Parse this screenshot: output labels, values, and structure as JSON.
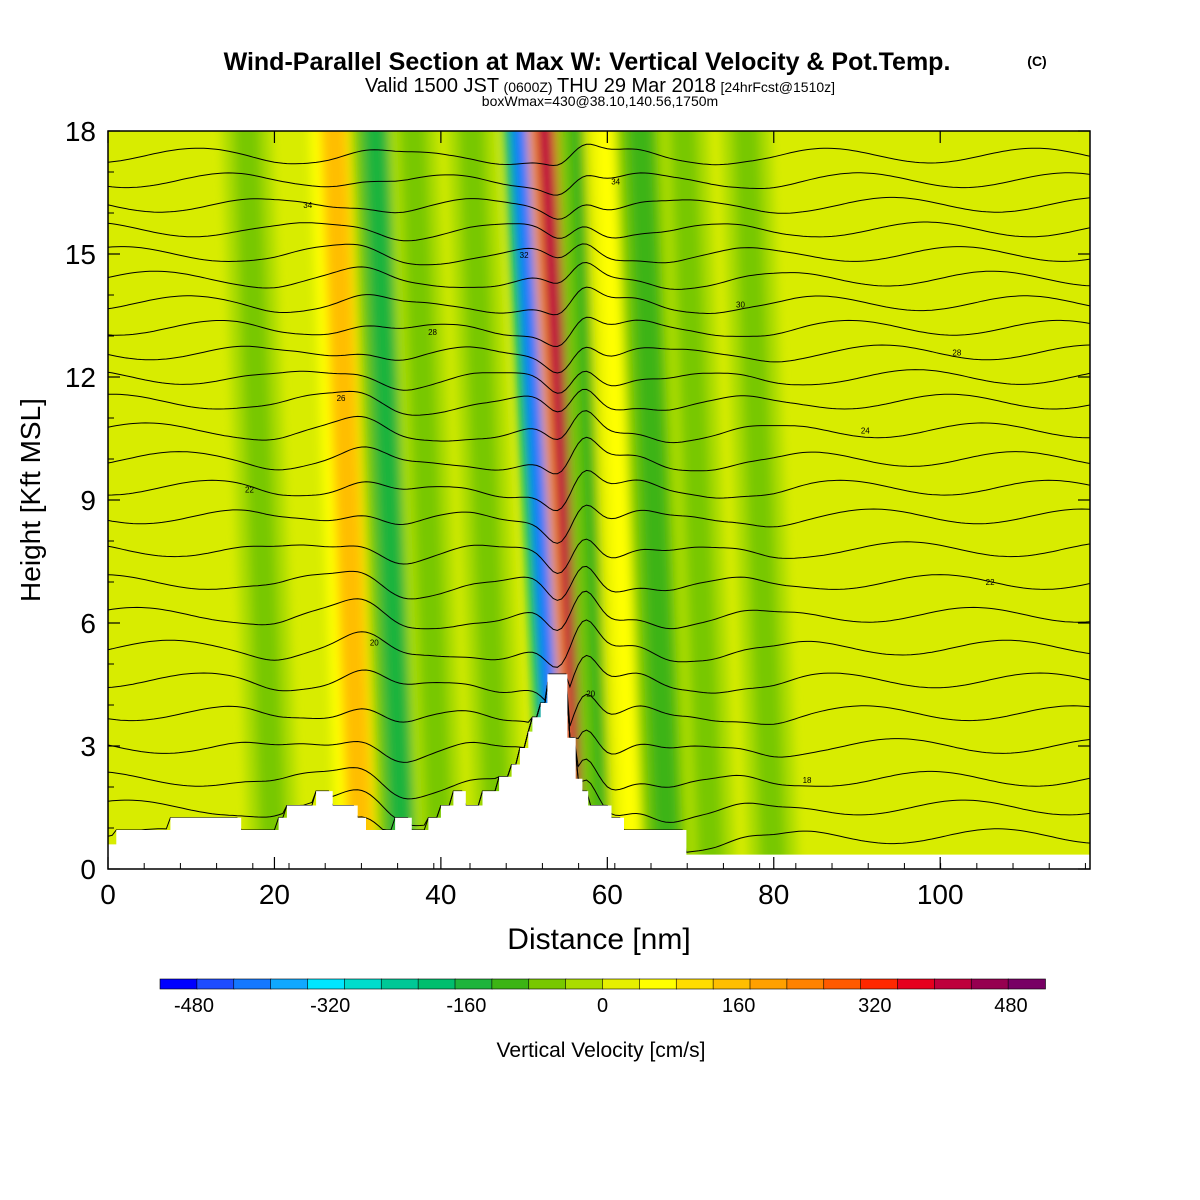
{
  "header": {
    "title": "Wind-Parallel Section at Max W: Vertical Velocity & Pot.Temp.",
    "title_mark": "(C)",
    "valid_prefix": "Valid 1500 JST",
    "valid_utc": "(0600Z)",
    "valid_date": "THU 29 Mar 2018",
    "valid_fcst": "[24hrFcst@1510z]",
    "box_info": "boxWmax=430@38.10,140.56,1750m"
  },
  "chart_data": {
    "type": "heatmap",
    "xlabel": "Distance [nm]",
    "ylabel": "Height [Kft MSL]",
    "xlim": [
      0,
      118
    ],
    "ylim": [
      0,
      18
    ],
    "x_ticks": [
      0,
      20,
      40,
      60,
      80,
      100
    ],
    "y_ticks": [
      0,
      3,
      6,
      9,
      12,
      15,
      18
    ],
    "grid": false,
    "colorbar": {
      "label": "Vertical Velocity [cm/s]",
      "ticks": [
        -480,
        -320,
        -160,
        0,
        160,
        320,
        480
      ],
      "colors": [
        "#0000ff",
        "#1e4cff",
        "#1478ff",
        "#10a8ff",
        "#00e6ff",
        "#00dccc",
        "#00c896",
        "#00be6e",
        "#1eb43c",
        "#3cb414",
        "#78c800",
        "#aadc00",
        "#e6f000",
        "#ffff00",
        "#ffdc00",
        "#ffbe00",
        "#ffa000",
        "#ff8200",
        "#ff5a00",
        "#ff2800",
        "#e6001e",
        "#be003c",
        "#960050",
        "#780064"
      ]
    },
    "w_bands": [
      {
        "x": 20,
        "w": -80
      },
      {
        "x": 30.5,
        "w": 160
      },
      {
        "x": 35.5,
        "w": -160
      },
      {
        "x": 40,
        "w": -80
      },
      {
        "x": 47,
        "w": -80
      },
      {
        "x": 54.3,
        "w": -430
      },
      {
        "x": 57.2,
        "w": 430
      },
      {
        "x": 60.2,
        "w": -120
      },
      {
        "x": 63.5,
        "w": 80
      },
      {
        "x": 67.3,
        "w": -120
      },
      {
        "x": 72.5,
        "w": -80
      },
      {
        "x": 80,
        "w": -60
      }
    ],
    "terrain": {
      "x": [
        0,
        1,
        1,
        7.5,
        7.5,
        16,
        16,
        17,
        17,
        20.5,
        20.5,
        21.5,
        21.5,
        25,
        25,
        27,
        27,
        30,
        30,
        31,
        31,
        34.5,
        34.5,
        36.5,
        36.5,
        38.5,
        38.5,
        40,
        40,
        41.5,
        41.5,
        43,
        43,
        45,
        45,
        47,
        47,
        48.5,
        48.5,
        49.5,
        49.5,
        50.5,
        50.5,
        51,
        51,
        52,
        52,
        52.8,
        52.8,
        55.2,
        55.2,
        56.2,
        56.2,
        57,
        57,
        57.7,
        57.7,
        60.5,
        60.5,
        62,
        62,
        69.5,
        69.5,
        118
      ],
      "h": [
        0.6,
        0.6,
        0.95,
        0.95,
        1.25,
        1.25,
        0.95,
        0.95,
        0.95,
        0.95,
        1.25,
        1.25,
        1.55,
        1.55,
        1.9,
        1.9,
        1.55,
        1.55,
        1.25,
        1.25,
        0.95,
        0.95,
        1.25,
        1.25,
        0.95,
        0.95,
        1.25,
        1.25,
        1.55,
        1.55,
        1.9,
        1.9,
        1.55,
        1.55,
        1.9,
        1.9,
        2.25,
        2.25,
        2.55,
        2.55,
        2.95,
        2.95,
        3.35,
        3.35,
        3.7,
        3.7,
        4.05,
        4.05,
        4.75,
        4.75,
        3.2,
        3.2,
        2.2,
        2.2,
        1.9,
        1.9,
        1.55,
        1.55,
        1.25,
        1.25,
        0.95,
        0.95,
        0.35,
        0.35
      ]
    },
    "theta_contours": [
      {
        "h": 0.8,
        "label": ""
      },
      {
        "h": 1.5,
        "label": ""
      },
      {
        "h": 2.2,
        "label": "18"
      },
      {
        "h": 3.0,
        "label": ""
      },
      {
        "h": 3.8,
        "label": "20"
      },
      {
        "h": 4.6,
        "label": ""
      },
      {
        "h": 5.4,
        "label": "20"
      },
      {
        "h": 6.2,
        "label": ""
      },
      {
        "h": 7.0,
        "label": "22"
      },
      {
        "h": 7.8,
        "label": ""
      },
      {
        "h": 8.6,
        "label": ""
      },
      {
        "h": 9.3,
        "label": "22"
      },
      {
        "h": 10.0,
        "label": ""
      },
      {
        "h": 10.7,
        "label": "24"
      },
      {
        "h": 11.4,
        "label": "26"
      },
      {
        "h": 12.0,
        "label": ""
      },
      {
        "h": 12.6,
        "label": "28"
      },
      {
        "h": 13.2,
        "label": "28"
      },
      {
        "h": 13.8,
        "label": "30"
      },
      {
        "h": 14.4,
        "label": ""
      },
      {
        "h": 15.0,
        "label": "32"
      },
      {
        "h": 15.6,
        "label": ""
      },
      {
        "h": 16.2,
        "label": "34"
      },
      {
        "h": 16.8,
        "label": "34"
      },
      {
        "h": 17.4,
        "label": ""
      }
    ]
  }
}
